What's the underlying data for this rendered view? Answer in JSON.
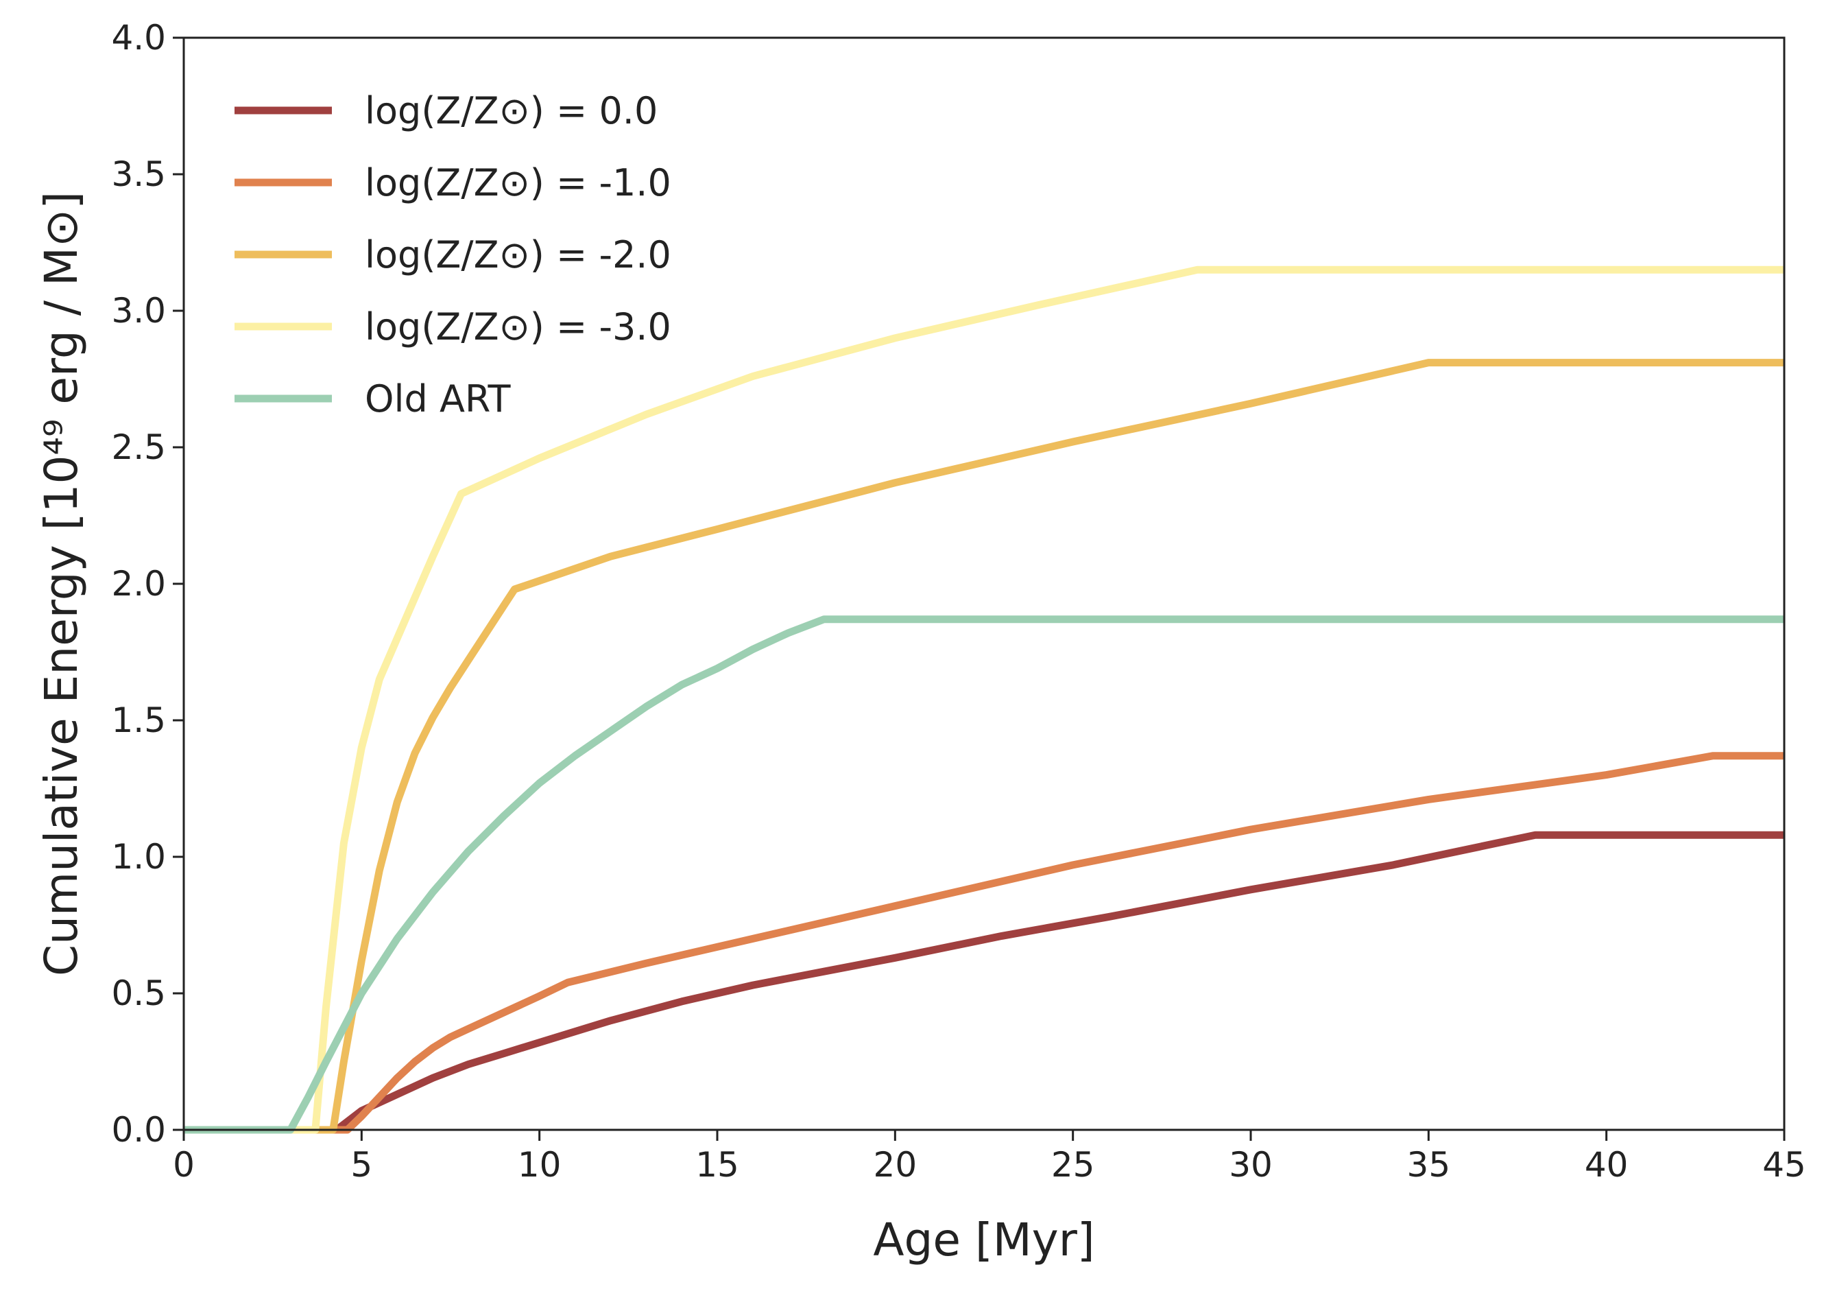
{
  "chart_data": {
    "type": "line",
    "xlabel": "Age [Myr]",
    "ylabel": "Cumulative Energy [10⁴⁹ erg / M⊙]",
    "xlim": [
      0,
      45
    ],
    "ylim": [
      0,
      4.0
    ],
    "x_ticks": [
      "0",
      "5",
      "10",
      "15",
      "20",
      "25",
      "30",
      "35",
      "40",
      "45"
    ],
    "y_ticks": [
      "0.0",
      "0.5",
      "1.0",
      "1.5",
      "2.0",
      "2.5",
      "3.0",
      "3.5",
      "4.0"
    ],
    "grid": false,
    "legend_position": "top-left",
    "series": [
      {
        "name": "log(Z/Z⊙) = 0.0",
        "color": "#a0403f",
        "points": [
          [
            0,
            0
          ],
          [
            4.3,
            0
          ],
          [
            5,
            0.07
          ],
          [
            6,
            0.13
          ],
          [
            7,
            0.19
          ],
          [
            8,
            0.24
          ],
          [
            9,
            0.28
          ],
          [
            10,
            0.32
          ],
          [
            12,
            0.4
          ],
          [
            14,
            0.47
          ],
          [
            16,
            0.53
          ],
          [
            18,
            0.58
          ],
          [
            20,
            0.63
          ],
          [
            23,
            0.71
          ],
          [
            26,
            0.78
          ],
          [
            30,
            0.88
          ],
          [
            34,
            0.97
          ],
          [
            38,
            1.08
          ],
          [
            45,
            1.08
          ]
        ]
      },
      {
        "name": "log(Z/Z⊙) = -1.0",
        "color": "#e0824e",
        "points": [
          [
            0,
            0
          ],
          [
            4.6,
            0
          ],
          [
            5,
            0.05
          ],
          [
            5.5,
            0.12
          ],
          [
            6,
            0.19
          ],
          [
            6.5,
            0.25
          ],
          [
            7,
            0.3
          ],
          [
            7.5,
            0.34
          ],
          [
            8,
            0.37
          ],
          [
            9,
            0.43
          ],
          [
            10,
            0.49
          ],
          [
            10.8,
            0.54
          ],
          [
            13,
            0.61
          ],
          [
            16,
            0.7
          ],
          [
            20,
            0.82
          ],
          [
            25,
            0.97
          ],
          [
            30,
            1.1
          ],
          [
            35,
            1.21
          ],
          [
            40,
            1.3
          ],
          [
            43,
            1.37
          ],
          [
            45,
            1.37
          ]
        ]
      },
      {
        "name": "log(Z/Z⊙) = -2.0",
        "color": "#eebd5c",
        "points": [
          [
            0,
            0
          ],
          [
            4.2,
            0
          ],
          [
            4.5,
            0.25
          ],
          [
            5,
            0.62
          ],
          [
            5.5,
            0.95
          ],
          [
            6,
            1.2
          ],
          [
            6.5,
            1.38
          ],
          [
            7,
            1.51
          ],
          [
            7.5,
            1.62
          ],
          [
            8,
            1.72
          ],
          [
            9,
            1.92
          ],
          [
            9.3,
            1.98
          ],
          [
            12,
            2.1
          ],
          [
            15,
            2.2
          ],
          [
            20,
            2.37
          ],
          [
            25,
            2.52
          ],
          [
            30,
            2.66
          ],
          [
            35,
            2.81
          ],
          [
            45,
            2.81
          ]
        ]
      },
      {
        "name": "log(Z/Z⊙) = -3.0",
        "color": "#fcf0a4",
        "points": [
          [
            0,
            0
          ],
          [
            3.7,
            0
          ],
          [
            4,
            0.45
          ],
          [
            4.5,
            1.05
          ],
          [
            5,
            1.4
          ],
          [
            5.5,
            1.65
          ],
          [
            6,
            1.8
          ],
          [
            6.5,
            1.95
          ],
          [
            7,
            2.1
          ],
          [
            7.8,
            2.33
          ],
          [
            10,
            2.46
          ],
          [
            13,
            2.62
          ],
          [
            16,
            2.76
          ],
          [
            20,
            2.9
          ],
          [
            24,
            3.02
          ],
          [
            28.5,
            3.15
          ],
          [
            45,
            3.15
          ]
        ]
      },
      {
        "name": "Old ART",
        "color": "#9ccfb2",
        "points": [
          [
            0,
            0
          ],
          [
            3,
            0
          ],
          [
            3.5,
            0.12
          ],
          [
            4,
            0.25
          ],
          [
            5,
            0.5
          ],
          [
            6,
            0.7
          ],
          [
            7,
            0.87
          ],
          [
            8,
            1.02
          ],
          [
            9,
            1.15
          ],
          [
            10,
            1.27
          ],
          [
            11,
            1.37
          ],
          [
            12,
            1.46
          ],
          [
            13,
            1.55
          ],
          [
            14,
            1.63
          ],
          [
            15,
            1.69
          ],
          [
            16,
            1.76
          ],
          [
            17,
            1.82
          ],
          [
            18,
            1.87
          ],
          [
            45,
            1.87
          ]
        ]
      }
    ]
  }
}
